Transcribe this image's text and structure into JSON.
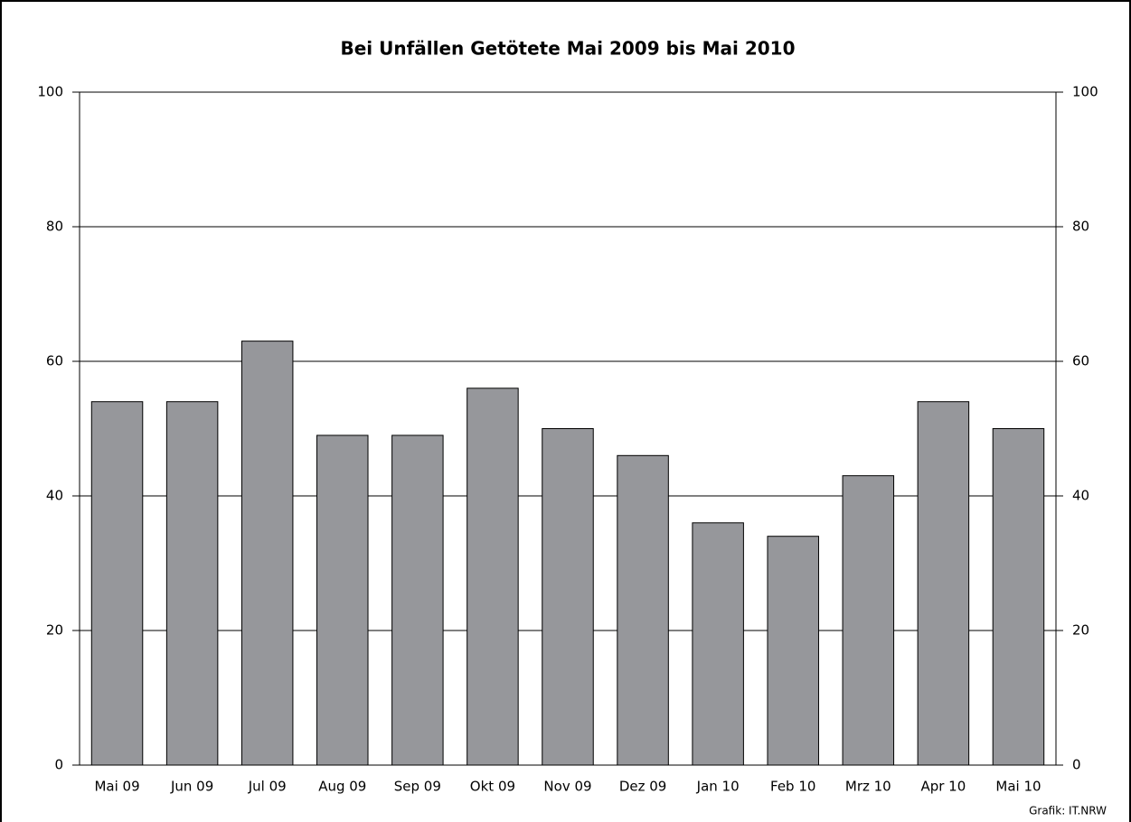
{
  "chart_data": {
    "type": "bar",
    "title": "Bei Unfällen Getötete Mai 2009 bis Mai 2010",
    "categories": [
      "Mai 09",
      "Jun 09",
      "Jul 09",
      "Aug 09",
      "Sep 09",
      "Okt 09",
      "Nov 09",
      "Dez 09",
      "Jan 10",
      "Feb 10",
      "Mrz 10",
      "Apr 10",
      "Mai 10"
    ],
    "values": [
      54,
      54,
      63,
      49,
      49,
      56,
      50,
      46,
      36,
      34,
      43,
      54,
      50
    ],
    "color": "#96979b",
    "ylim": [
      0,
      100
    ],
    "yticks": [
      0,
      20,
      40,
      60,
      80,
      100
    ],
    "y2lim": [
      0,
      100
    ],
    "y2ticks": [
      0,
      20,
      40,
      60,
      80,
      100
    ],
    "grid": true,
    "source": "Grafik: IT.NRW"
  }
}
